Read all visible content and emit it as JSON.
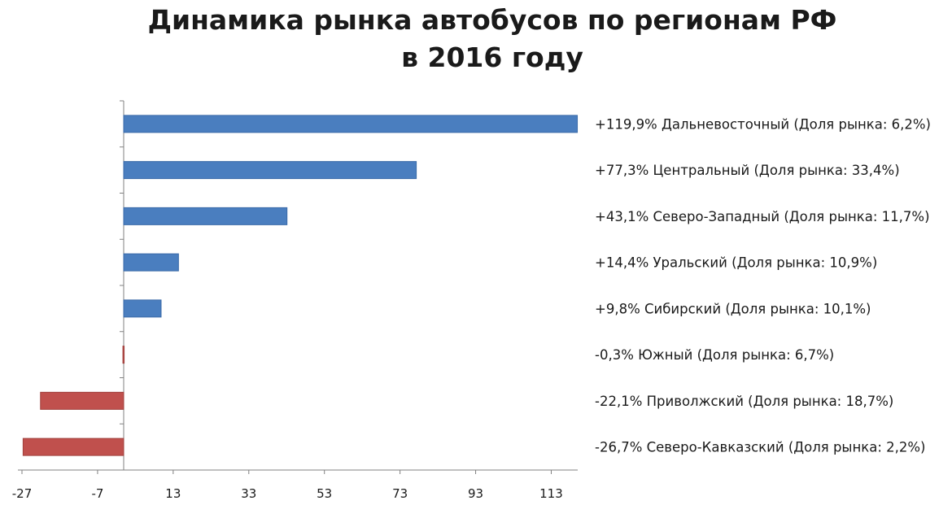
{
  "chart_data": {
    "type": "bar",
    "orientation": "horizontal",
    "title": [
      "Динамика рынка автобусов по регионам РФ",
      "в 2016 году"
    ],
    "xlabel": "",
    "ylabel": "",
    "xlim": [
      -27,
      120
    ],
    "x_ticks": [
      "-27",
      "-7",
      "13",
      "33",
      "53",
      "73",
      "93",
      "113"
    ],
    "grid": false,
    "legend": "none",
    "categories": [
      "+119,9% Дальневосточный (Доля рынка: 6,2%)",
      "+77,3% Центральный (Доля рынка: 33,4%)",
      "+43,1% Северо-Западный (Доля рынка: 11,7%)",
      "+14,4% Уральский (Доля рынка: 10,9%)",
      "+9,8% Сибирский (Доля рынка: 10,1%)",
      "-0,3% Южный (Доля рынка: 6,7%)",
      "-22,1% Приволжский (Доля рынка: 18,7%)",
      "-26,7% Северо-Кавказский (Доля рынка: 2,2%)"
    ],
    "values": [
      119.9,
      77.3,
      43.1,
      14.4,
      9.8,
      -0.3,
      -22.1,
      -26.7
    ],
    "colors": {
      "positive": "#4a7ebf",
      "positive_edge": "#3a6aa8",
      "negative": "#c0504d",
      "negative_edge": "#a0403d",
      "axis": "#808080"
    }
  }
}
